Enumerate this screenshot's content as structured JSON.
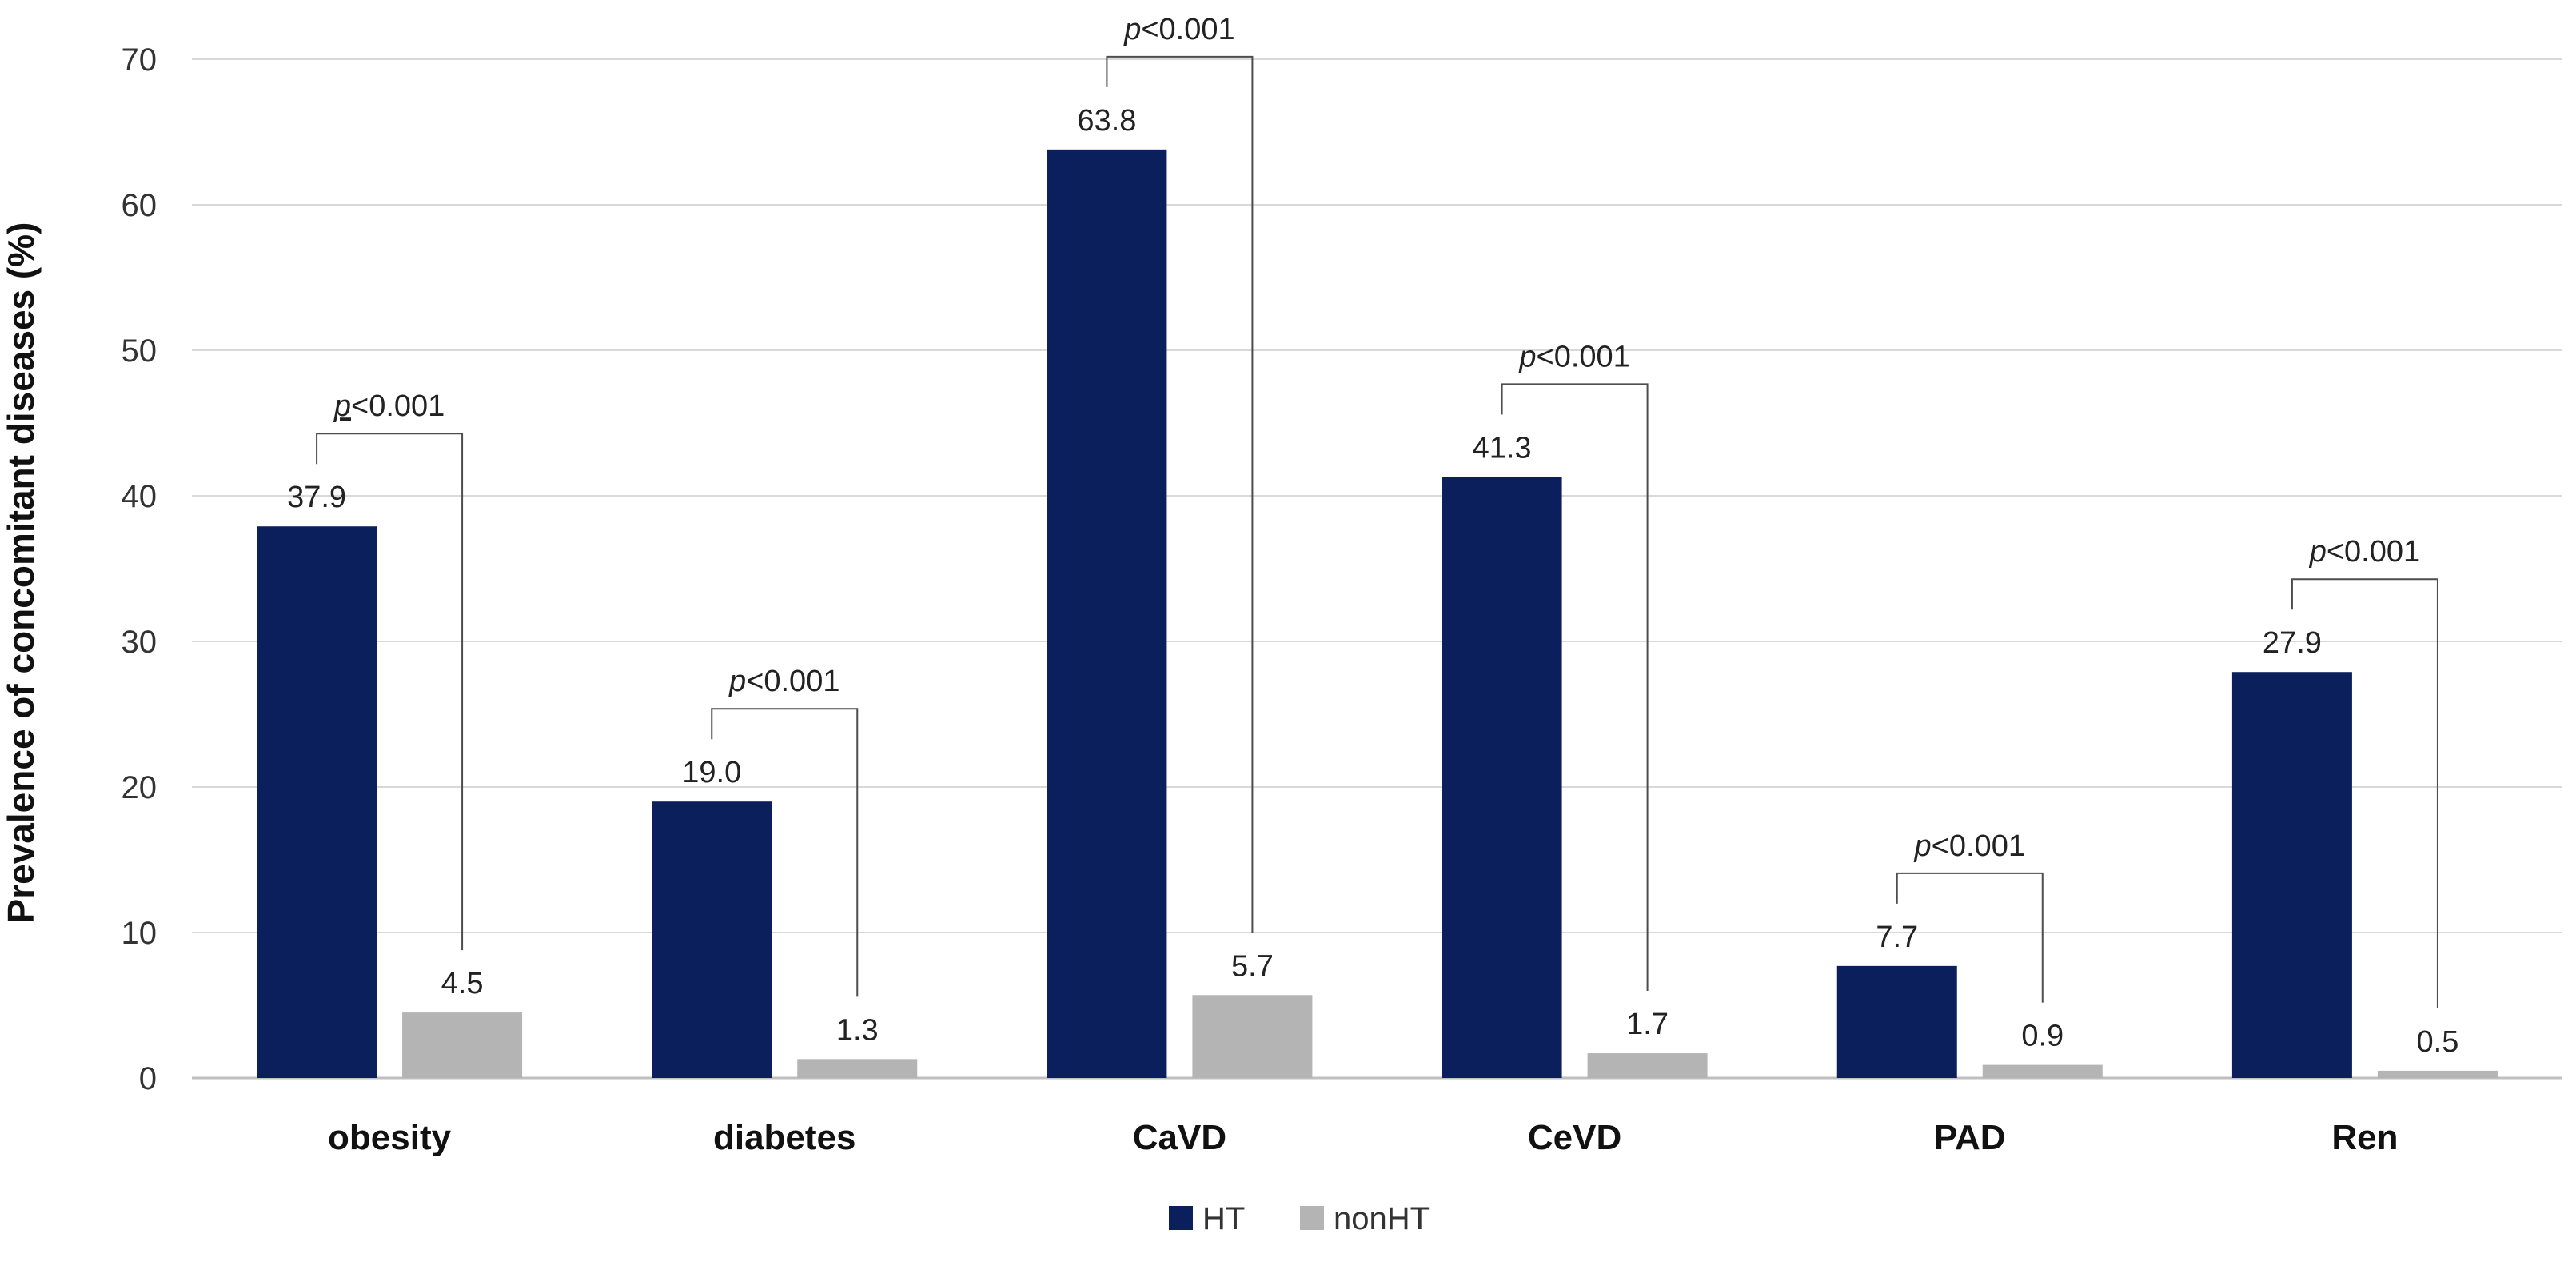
{
  "chart_data": {
    "type": "bar",
    "title": "",
    "xlabel": "",
    "ylabel": "Prevalence of concomitant diseases (%)",
    "ylim": [
      0,
      70
    ],
    "yticks": [
      0,
      10,
      20,
      30,
      40,
      50,
      60,
      70
    ],
    "grid": true,
    "legend_position": "bottom",
    "categories": [
      "obesity",
      "diabetes",
      "CaVD",
      "CeVD",
      "PAD",
      "Ren"
    ],
    "series": [
      {
        "name": "HT",
        "color": "#0a1f5c",
        "values": [
          37.9,
          19.0,
          63.8,
          41.3,
          7.7,
          27.9
        ],
        "labels": [
          "37.9",
          "19.0",
          "63.8",
          "41.3",
          "7.7",
          "27.9"
        ]
      },
      {
        "name": "nonHT",
        "color": "#b4b4b4",
        "values": [
          4.5,
          1.3,
          5.7,
          1.7,
          0.9,
          0.5
        ],
        "labels": [
          "4.5",
          "1.3",
          "5.7",
          "1.7",
          "0.9",
          "0.5"
        ]
      }
    ],
    "annotations": [
      {
        "category": "obesity",
        "p_symbol": "p",
        "text": "<0.001"
      },
      {
        "category": "diabetes",
        "p_symbol": "p",
        "text": "<0.001"
      },
      {
        "category": "CaVD",
        "p_symbol": "p",
        "text": "<0.001"
      },
      {
        "category": "CeVD",
        "p_symbol": "p",
        "text": "<0.001"
      },
      {
        "category": "PAD",
        "p_symbol": "p",
        "text": "<0.001"
      },
      {
        "category": "Ren",
        "p_symbol": "p",
        "text": "<0.001"
      }
    ]
  }
}
